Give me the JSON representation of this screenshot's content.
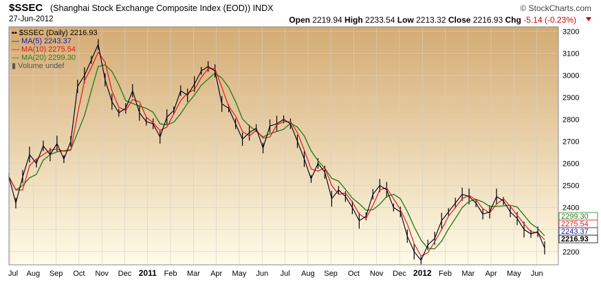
{
  "header": {
    "ticker": "$SSEC",
    "name": "(Shanghai Stock Exchange Composite Index (EOD)) INDX",
    "date": "27-Jun-2012",
    "brand": "© StockCharts.com",
    "open_label": "Open",
    "open": "2219.94",
    "high_label": "High",
    "high": "2233.54",
    "low_label": "Low",
    "low": "2213.32",
    "close_label": "Close",
    "close": "2216.93",
    "chg_label": "Chg",
    "chg": "-5.14 (-0.23%)"
  },
  "legend": [
    {
      "text": "$SSEC (Daily) 2216.93",
      "color": "#000000"
    },
    {
      "text": "MA(5) 2243.37",
      "color": "#1a1aa6"
    },
    {
      "text": "MA(10) 2275.54",
      "color": "#e01818"
    },
    {
      "text": "MA(20) 2299.30",
      "color": "#2e7d1e"
    },
    {
      "text": "Volume undef",
      "color": "#555555"
    }
  ],
  "colors": {
    "bg_top": "#d4ab73",
    "bg_bottom": "#fffbe8",
    "price": "#000000",
    "ma5": "#1a1aa6",
    "ma10": "#e01818",
    "ma20": "#2e7d1e",
    "grid": "#cfcfcf"
  },
  "chart_data": {
    "type": "line",
    "ylim": [
      2140,
      3220
    ],
    "y_ticks": [
      2200,
      2300,
      2400,
      2500,
      2600,
      2700,
      2800,
      2900,
      3000,
      3100,
      3200
    ],
    "x_ticks": [
      "Jul",
      "Aug",
      "Sep",
      "Oct",
      "Nov",
      "Dec",
      "2011",
      "Feb",
      "Mar",
      "Apr",
      "May",
      "Jun",
      "Jul",
      "Aug",
      "Sep",
      "Oct",
      "Nov",
      "Dec",
      "2012",
      "Feb",
      "Mar",
      "Apr",
      "May",
      "Jun"
    ],
    "x_tick_positions": [
      0,
      1,
      2,
      3,
      4,
      5,
      6,
      7,
      8,
      9,
      10,
      11,
      12,
      13,
      14,
      15,
      16,
      17,
      18,
      19,
      20,
      21,
      22,
      23
    ],
    "x_range": [
      0,
      24
    ],
    "bold_ticks": [
      "2011",
      "2012"
    ],
    "series_price": [
      2540,
      2420,
      2540,
      2640,
      2600,
      2680,
      2640,
      2690,
      2620,
      2700,
      2950,
      3000,
      3070,
      3140,
      2980,
      2880,
      2830,
      2850,
      2930,
      2830,
      2790,
      2780,
      2720,
      2810,
      2840,
      2930,
      2910,
      2960,
      3020,
      3040,
      3020,
      2870,
      2850,
      2780,
      2710,
      2740,
      2760,
      2670,
      2770,
      2780,
      2800,
      2780,
      2700,
      2620,
      2530,
      2600,
      2560,
      2440,
      2480,
      2450,
      2400,
      2340,
      2360,
      2460,
      2500,
      2480,
      2400,
      2380,
      2270,
      2200,
      2160,
      2230,
      2260,
      2340,
      2380,
      2420,
      2460,
      2450,
      2420,
      2370,
      2380,
      2450,
      2430,
      2380,
      2350,
      2300,
      2280,
      2290,
      2217
    ],
    "price_labels": [
      {
        "text": "2299.30",
        "value": 2299.3,
        "color": "#2e7d1e"
      },
      {
        "text": "2275.54",
        "value": 2275.54,
        "color": "#e01818"
      },
      {
        "text": "2243.37",
        "value": 2243.37,
        "color": "#1a1aa6"
      },
      {
        "text": "2216.93",
        "value": 2216.93,
        "color": "#000000"
      }
    ]
  }
}
